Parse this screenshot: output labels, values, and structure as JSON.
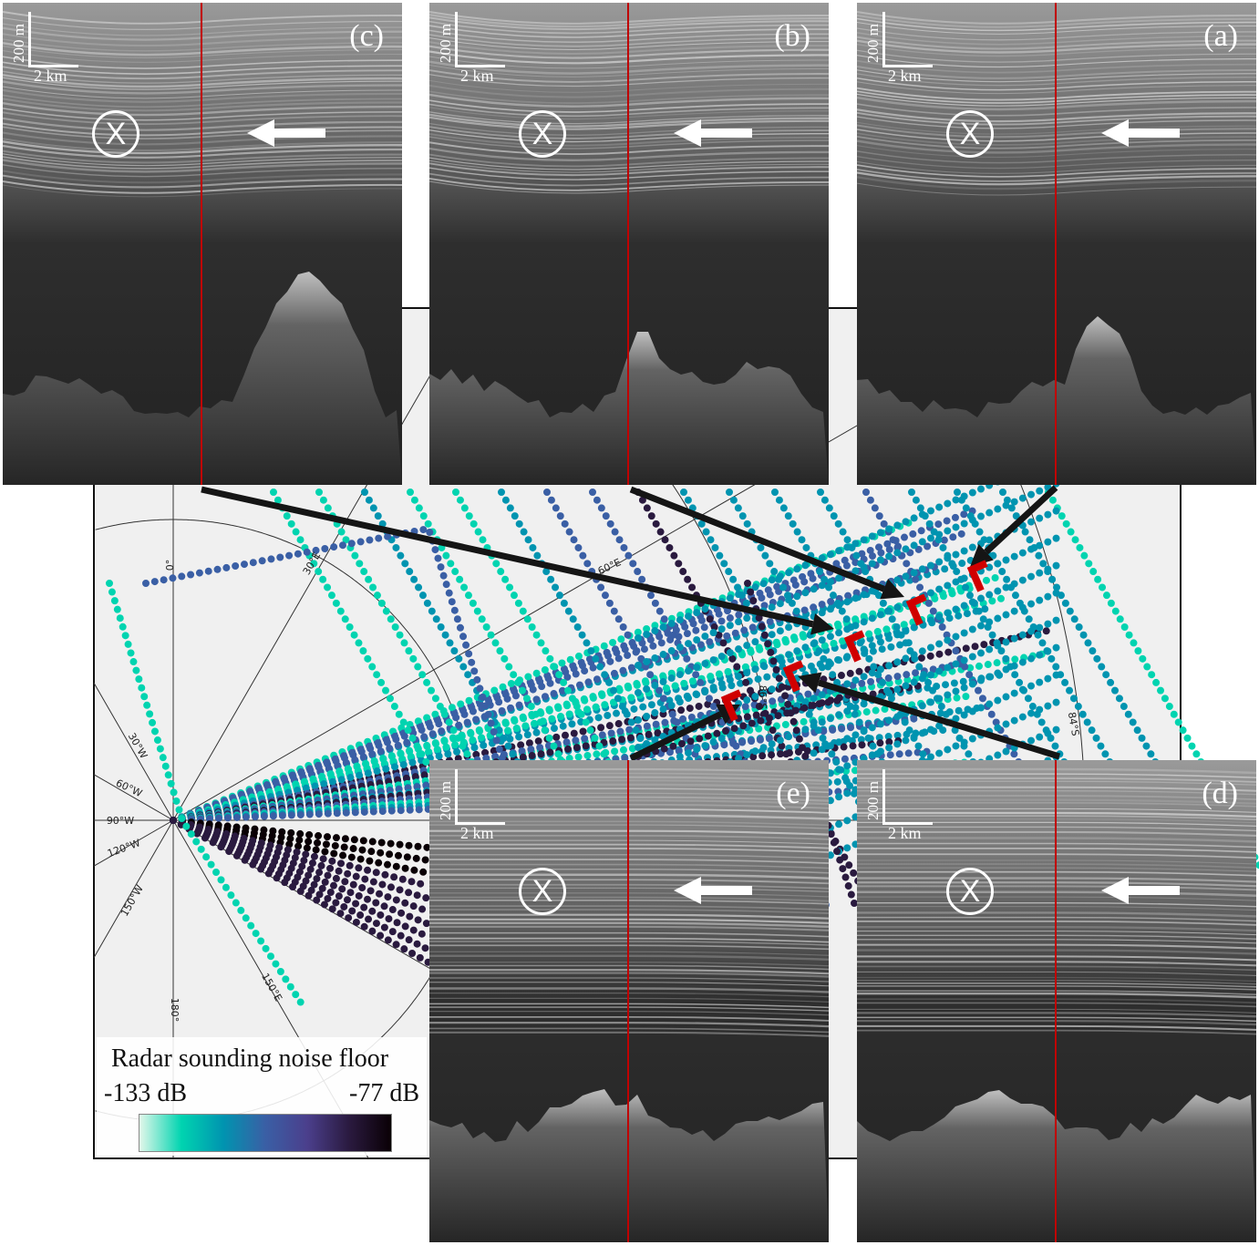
{
  "map": {
    "longitude_labels": [
      "0°",
      "30°E",
      "60°E",
      "150°E",
      "180°",
      "30°W",
      "60°W",
      "90°W",
      "120°W",
      "150°W"
    ],
    "latitude_labels": [
      "86°S",
      "84°S"
    ],
    "colors": {
      "background": "#f0f0f0",
      "marker": "#d00000",
      "arrow": "#151515"
    }
  },
  "legend": {
    "title": "Radar sounding noise floor",
    "min_label": "-133 dB",
    "max_label": "-77 dB",
    "colormap": [
      "#e2f7ea",
      "#00d4b0",
      "#0094b0",
      "#3a5fa5",
      "#4b3f8c",
      "#2a1a3f",
      "#0a0005"
    ]
  },
  "panels": [
    {
      "id": "c",
      "label": "(c)",
      "scale_vertical": "200 m",
      "scale_horizontal": "2 km",
      "symbol": "X"
    },
    {
      "id": "b",
      "label": "(b)",
      "scale_vertical": "200 m",
      "scale_horizontal": "2 km",
      "symbol": "X"
    },
    {
      "id": "a",
      "label": "(a)",
      "scale_vertical": "200 m",
      "scale_horizontal": "2 km",
      "symbol": "X"
    },
    {
      "id": "e",
      "label": "(e)",
      "scale_vertical": "200 m",
      "scale_horizontal": "2 km",
      "symbol": "X"
    },
    {
      "id": "d",
      "label": "(d)",
      "scale_vertical": "200 m",
      "scale_horizontal": "2 km",
      "symbol": "X"
    }
  ]
}
